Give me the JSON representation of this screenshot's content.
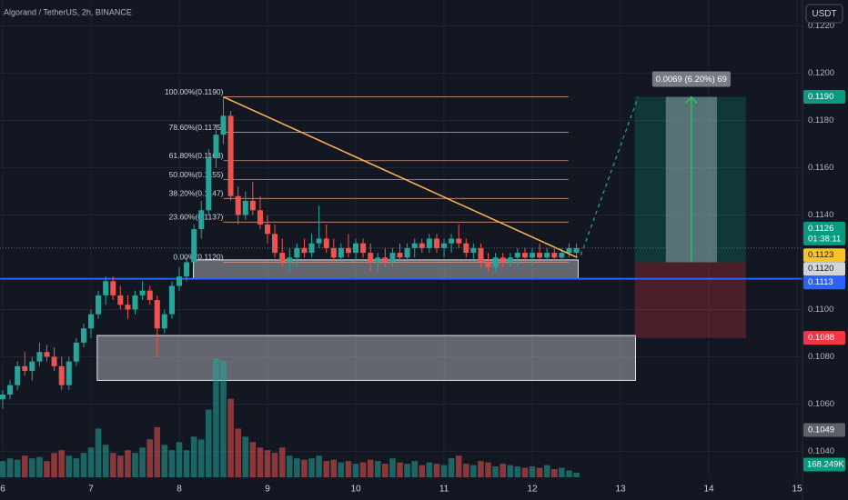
{
  "chart_data": {
    "type": "candlestick",
    "title": "Algorand / TetherUS, 2h, BINANCE",
    "currency": "USDT",
    "x": [
      6,
      6.083,
      6.167,
      6.25,
      6.333,
      6.417,
      6.5,
      6.583,
      6.667,
      6.75,
      6.833,
      6.917,
      7,
      7.083,
      7.167,
      7.25,
      7.333,
      7.417,
      7.5,
      7.583,
      7.667,
      7.75,
      7.833,
      7.917,
      8,
      8.083,
      8.167,
      8.25,
      8.333,
      8.417,
      8.5,
      8.583,
      8.667,
      8.75,
      8.833,
      8.917,
      9,
      9.083,
      9.167,
      9.25,
      9.333,
      9.417,
      9.5,
      9.583,
      9.667,
      9.75,
      9.833,
      9.917,
      10,
      10.083,
      10.167,
      10.25,
      10.333,
      10.417,
      10.5,
      10.583,
      10.667,
      10.75,
      10.833,
      10.917,
      11,
      11.083,
      11.167,
      11.25,
      11.333,
      11.417,
      11.5,
      11.583,
      11.667,
      11.75,
      11.833,
      11.917,
      12,
      12.083,
      12.167,
      12.25,
      12.333,
      12.417,
      12.5
    ],
    "open": [
      0.1062,
      0.1064,
      0.1068,
      0.1076,
      0.1074,
      0.1078,
      0.1082,
      0.108,
      0.1076,
      0.1068,
      0.1078,
      0.1086,
      0.1092,
      0.1098,
      0.1106,
      0.1112,
      0.1106,
      0.1102,
      0.11,
      0.1106,
      0.1108,
      0.1104,
      0.1092,
      0.1098,
      0.111,
      0.1114,
      0.112,
      0.1134,
      0.1142,
      0.1164,
      0.1174,
      0.1182,
      0.1148,
      0.114,
      0.1146,
      0.1142,
      0.1136,
      0.1132,
      0.1124,
      0.112,
      0.1122,
      0.1126,
      0.1124,
      0.1128,
      0.113,
      0.1126,
      0.1122,
      0.1126,
      0.1124,
      0.1128,
      0.1124,
      0.112,
      0.1122,
      0.112,
      0.1124,
      0.1122,
      0.1126,
      0.1128,
      0.1126,
      0.113,
      0.1126,
      0.1128,
      0.113,
      0.1128,
      0.1124,
      0.1126,
      0.112,
      0.1118,
      0.1122,
      0.112,
      0.1122,
      0.1124,
      0.1122,
      0.1124,
      0.1122,
      0.1124,
      0.1122,
      0.1124,
      0.1124
    ],
    "high": [
      0.1066,
      0.107,
      0.1078,
      0.1082,
      0.108,
      0.1086,
      0.1085,
      0.1084,
      0.108,
      0.108,
      0.1088,
      0.1094,
      0.11,
      0.1108,
      0.1114,
      0.1114,
      0.111,
      0.1106,
      0.1108,
      0.1112,
      0.111,
      0.1106,
      0.11,
      0.1112,
      0.1118,
      0.1122,
      0.1136,
      0.1146,
      0.1168,
      0.1178,
      0.119,
      0.1184,
      0.1152,
      0.115,
      0.1154,
      0.1148,
      0.114,
      0.1136,
      0.113,
      0.1126,
      0.1128,
      0.113,
      0.1132,
      0.1144,
      0.1136,
      0.113,
      0.1128,
      0.1132,
      0.113,
      0.113,
      0.1128,
      0.1124,
      0.1126,
      0.1126,
      0.1128,
      0.1128,
      0.113,
      0.113,
      0.1132,
      0.1132,
      0.113,
      0.1132,
      0.1136,
      0.113,
      0.1128,
      0.1128,
      0.1124,
      0.1124,
      0.1124,
      0.1124,
      0.1126,
      0.1126,
      0.1126,
      0.1128,
      0.1126,
      0.1126,
      0.1126,
      0.1128,
      0.1128
    ],
    "low": [
      0.1058,
      0.1062,
      0.1066,
      0.1072,
      0.107,
      0.1076,
      0.1078,
      0.1074,
      0.1066,
      0.1066,
      0.1076,
      0.1084,
      0.1088,
      0.1096,
      0.1102,
      0.1104,
      0.11,
      0.1096,
      0.1098,
      0.1104,
      0.1102,
      0.108,
      0.109,
      0.1096,
      0.1108,
      0.1112,
      0.1118,
      0.113,
      0.114,
      0.116,
      0.117,
      0.1146,
      0.1136,
      0.1138,
      0.114,
      0.1134,
      0.1128,
      0.1122,
      0.1118,
      0.1116,
      0.1118,
      0.1122,
      0.1122,
      0.1126,
      0.1124,
      0.112,
      0.112,
      0.1122,
      0.112,
      0.1122,
      0.1116,
      0.1116,
      0.1118,
      0.1118,
      0.112,
      0.112,
      0.1122,
      0.1124,
      0.1124,
      0.1124,
      0.1122,
      0.1124,
      0.1126,
      0.1122,
      0.112,
      0.1118,
      0.1116,
      0.1116,
      0.1118,
      0.1118,
      0.1118,
      0.112,
      0.1118,
      0.112,
      0.112,
      0.112,
      0.112,
      0.1122,
      0.1122
    ],
    "close": [
      0.1064,
      0.1068,
      0.1076,
      0.1074,
      0.1078,
      0.1082,
      0.108,
      0.1076,
      0.1068,
      0.1078,
      0.1086,
      0.1092,
      0.1098,
      0.1106,
      0.1112,
      0.1106,
      0.1102,
      0.11,
      0.1106,
      0.1108,
      0.1104,
      0.1092,
      0.1098,
      0.111,
      0.1114,
      0.112,
      0.1134,
      0.1142,
      0.1164,
      0.1174,
      0.1182,
      0.1148,
      0.114,
      0.1146,
      0.1142,
      0.1136,
      0.1132,
      0.1124,
      0.112,
      0.1122,
      0.1126,
      0.1124,
      0.1128,
      0.113,
      0.1126,
      0.1122,
      0.1126,
      0.1124,
      0.1128,
      0.1124,
      0.112,
      0.1122,
      0.112,
      0.1124,
      0.1122,
      0.1126,
      0.1128,
      0.1126,
      0.113,
      0.1126,
      0.1128,
      0.113,
      0.1128,
      0.1124,
      0.1126,
      0.112,
      0.1118,
      0.1122,
      0.112,
      0.1122,
      0.1124,
      0.1122,
      0.1124,
      0.1122,
      0.1124,
      0.1122,
      0.1124,
      0.1126,
      0.1126
    ],
    "volume": [
      600,
      700,
      650,
      800,
      700,
      750,
      600,
      900,
      1000,
      800,
      700,
      900,
      1100,
      1800,
      1200,
      900,
      800,
      1000,
      900,
      1100,
      1400,
      1850,
      1200,
      1000,
      1300,
      1000,
      1500,
      1400,
      2500,
      4400,
      4300,
      2900,
      1800,
      1500,
      1300,
      1100,
      1000,
      900,
      1100,
      800,
      700,
      650,
      700,
      800,
      600,
      650,
      550,
      600,
      500,
      550,
      650,
      600,
      500,
      700,
      550,
      500,
      600,
      450,
      550,
      500,
      450,
      700,
      800,
      500,
      450,
      600,
      550,
      400,
      500,
      450,
      400,
      350,
      400,
      350,
      450,
      300,
      350,
      250,
      168.249
    ],
    "volume_label": "168.249K",
    "vlim": [
      0,
      4500
    ],
    "up_color": "#26a69a",
    "down_color": "#ef5350",
    "xlim": [
      5.969,
      15.041
    ],
    "xticks": [
      6,
      7,
      8,
      9,
      10,
      11,
      12,
      13,
      14,
      15
    ],
    "ylim": [
      0.1029,
      0.1231
    ],
    "yticks": [
      {
        "value": 0.104,
        "label": "0.1040"
      },
      {
        "value": 0.106,
        "label": "0.1060"
      },
      {
        "value": 0.108,
        "label": "0.1080"
      },
      {
        "value": 0.11,
        "label": "0.1100"
      },
      {
        "value": 0.114,
        "label": "0.1140"
      },
      {
        "value": 0.116,
        "label": "0.1160"
      },
      {
        "value": 0.118,
        "label": "0.1180"
      },
      {
        "value": 0.12,
        "label": "0.1200"
      },
      {
        "value": 0.122,
        "label": "0.1220"
      }
    ],
    "grid": true,
    "fibonacci": {
      "x": [
        8.5,
        12.41
      ],
      "levels": [
        {
          "value": 0.119,
          "label": "100.00%(0.1190)"
        },
        {
          "value": 0.1175,
          "label": "78.60%(0.1175)"
        },
        {
          "value": 0.1163,
          "label": "61.80%(0.1163)"
        },
        {
          "value": 0.1155,
          "label": "50.00%(0.1155)"
        },
        {
          "value": 0.1147,
          "label": "38.20%(0.1147)"
        },
        {
          "value": 0.1137,
          "label": "23.60%(0.1137)"
        },
        {
          "value": 0.112,
          "label": "0.00%(0.1120)"
        }
      ]
    },
    "trend_line": {
      "x": [
        8.5,
        12.51
      ],
      "y": [
        0.119,
        0.1122
      ],
      "color": "#ffb74d"
    },
    "projection": {
      "x": [
        12.55,
        13.2
      ],
      "y": [
        0.1123,
        0.119
      ],
      "color": "#26a69a"
    },
    "zones": [
      {
        "x": [
          8.16,
          12.52
        ],
        "y": [
          0.1113,
          0.1121
        ]
      },
      {
        "x": [
          7.07,
          13.17
        ],
        "y": [
          0.107,
          0.1089
        ]
      }
    ],
    "support_line": {
      "value": 0.1113,
      "color": "#2962ff"
    },
    "long_position": {
      "x": [
        13.16,
        14.42
      ],
      "entry": 0.112,
      "target": 0.119,
      "stop": 0.1088,
      "label": "0.0069 (6.20%) 69"
    },
    "price_labels": [
      {
        "value": 0.119,
        "label": "0.1190",
        "color": "#089981"
      },
      {
        "value": 0.1126,
        "label": "0.1126",
        "sublabel": "01:38:11",
        "color": "#089981"
      },
      {
        "value": 0.1123,
        "label": "0.1123",
        "color": "#f7c325"
      },
      {
        "value": 0.112,
        "label": "0.1120",
        "color": "#d1d4dc"
      },
      {
        "value": 0.1113,
        "label": "0.1113",
        "color": "#2962ff"
      },
      {
        "value": 0.1088,
        "label": "0.1088",
        "color": "#f23645"
      },
      {
        "value": 0.1049,
        "label": "0.1049",
        "color": "#5d606b"
      }
    ]
  }
}
